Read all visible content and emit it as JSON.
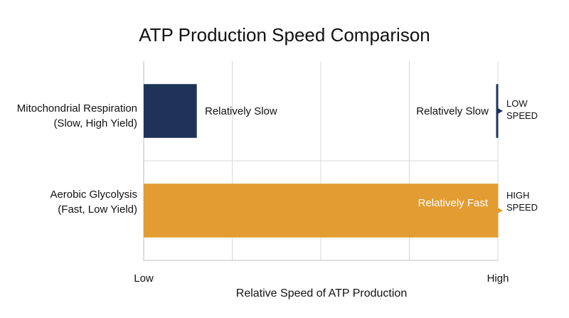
{
  "chart_data": {
    "type": "bar",
    "orientation": "horizontal",
    "title": "ATP Production Speed Comparison",
    "xlabel": "Relative Speed of ATP Production",
    "ylabel": "",
    "xlim": [
      0,
      1
    ],
    "x_tick_labels": [
      "Low",
      "High"
    ],
    "grid": true,
    "categories": [
      {
        "line1": "Mitochondrial Respiration",
        "line2": "(Slow, High Yield)"
      },
      {
        "line1": "Aerobic Glycolysis",
        "line2": "(Fast, Low Yield)"
      }
    ],
    "values": [
      0.15,
      1.0
    ],
    "bar_colors": [
      "#1f3358",
      "#e39c32"
    ],
    "bar_labels": [
      "Relatively Slow",
      "Relatively Fast"
    ],
    "bar_label_colors": [
      "#111111",
      "#ffffff"
    ],
    "annotations": [
      {
        "text": "Relatively Slow",
        "end_label_line1": "LOW",
        "end_label_line2": "SPEED",
        "marker_color": "#1f3358"
      },
      {
        "end_label_line1": "HIGH",
        "end_label_line2": "SPEED",
        "marker_color": "#e39c32"
      }
    ]
  }
}
